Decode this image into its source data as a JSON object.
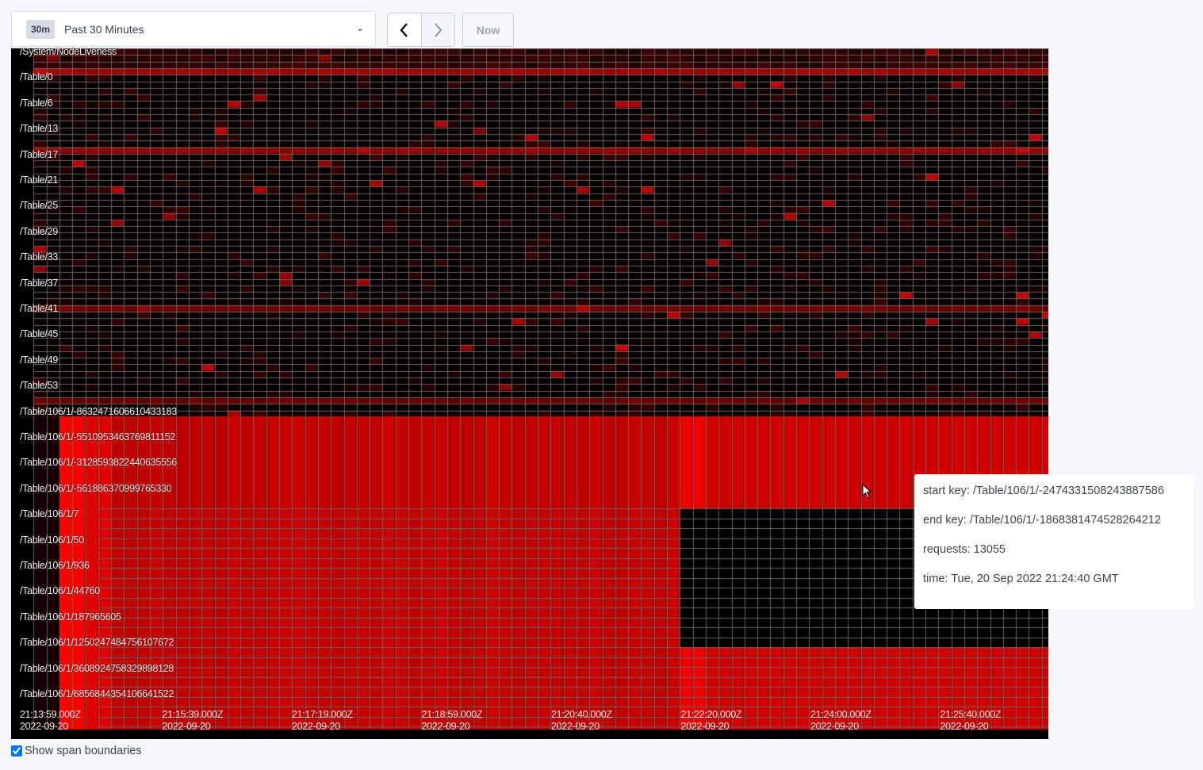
{
  "toolbar": {
    "range_badge": "30m",
    "range_label": "Past 30 Minutes",
    "now_label": "Now"
  },
  "heatmap": {
    "y_labels": [
      "/System/NodeLiveness",
      "/Table/0",
      "/Table/6",
      "/Table/13",
      "/Table/17",
      "/Table/21",
      "/Table/25",
      "/Table/29",
      "/Table/33",
      "/Table/37",
      "/Table/41",
      "/Table/45",
      "/Table/49",
      "/Table/53",
      "/Table/106/1/-8632471606610433183",
      "/Table/106/1/-5510953463769811152",
      "/Table/106/1/-3128593822440635556",
      "/Table/106/1/-561886370999765330",
      "/Table/106/1/7",
      "/Table/106/1/50",
      "/Table/106/1/936",
      "/Table/106/1/44760",
      "/Table/106/1/187965605",
      "/Table/106/1/1250247484756107672",
      "/Table/106/1/3608924758329898128",
      "/Table/106/1/6856844354106641522"
    ],
    "x_labels": [
      {
        "time": "21:13:59.000Z",
        "date": "2022-09-20"
      },
      {
        "time": "21:15:39.000Z",
        "date": "2022-09-20"
      },
      {
        "time": "21:17:19.000Z",
        "date": "2022-09-20"
      },
      {
        "time": "21:18:59.000Z",
        "date": "2022-09-20"
      },
      {
        "time": "21:20:40.000Z",
        "date": "2022-09-20"
      },
      {
        "time": "21:22:20.000Z",
        "date": "2022-09-20"
      },
      {
        "time": "21:24:00.000Z",
        "date": "2022-09-20"
      },
      {
        "time": "21:25:40.000Z",
        "date": "2022-09-20"
      }
    ],
    "colors": {
      "low": "#000000",
      "high": "#ff0000",
      "grid": "#666666"
    }
  },
  "tooltip": {
    "start_key": "start key: /Table/106/1/-2474331508243887586",
    "end_key": "end key: /Table/106/1/-1868381474528264212",
    "requests": "requests: 13055",
    "time": "time: Tue, 20 Sep 2022 21:24:40 GMT"
  },
  "options": {
    "show_span_boundaries_label": "Show span boundaries",
    "show_span_boundaries": true
  }
}
